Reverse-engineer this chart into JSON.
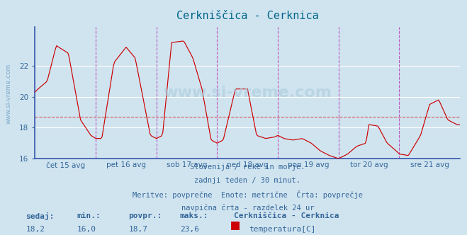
{
  "title": "Cerkniščica - Cerknica",
  "background_color": "#d0e4f0",
  "plot_bg_color": "#d0e4f0",
  "line_color": "#cc0000",
  "avg_line_color": "#dd4444",
  "vline_color": "#bb44bb",
  "grid_color": "#ffffff",
  "title_color": "#006688",
  "ymin": 16,
  "ymax": 24.5,
  "yticks": [
    16,
    18,
    20,
    22
  ],
  "avg_value": 18.7,
  "n_points": 337,
  "x_labels": [
    "čet 15 avg",
    "pet 16 avg",
    "sob 17 avg",
    "ned 18 avg",
    "pon 19 avg",
    "tor 20 avg",
    "sre 21 avg"
  ],
  "subtitle_lines": [
    "Slovenija / reke in morje.",
    "zadnji teden / 30 minut.",
    "Meritve: povprečne  Enote: metrične  Črta: povprečje",
    "navpična črta - razdelek 24 ur"
  ],
  "stat_labels": [
    "sedaj:",
    "min.:",
    "povpr.:",
    "maks.:"
  ],
  "stat_values": [
    "18,2",
    "16,0",
    "18,7",
    "23,6"
  ],
  "legend_title": "Cerkniščica - Cerknica",
  "legend_label": "temperatura[C]",
  "legend_color": "#cc0000",
  "watermark": "www.si-vreme.com",
  "axis_label_color": "#336699",
  "spine_color": "#3355aa",
  "ctrl_x": [
    0,
    0.05,
    0.2,
    0.35,
    0.55,
    0.75,
    0.92,
    1.0,
    1.1,
    1.3,
    1.5,
    1.65,
    1.75,
    1.9,
    2.0,
    2.1,
    2.25,
    2.45,
    2.6,
    2.75,
    2.9,
    3.0,
    3.1,
    3.3,
    3.5,
    3.65,
    3.8,
    3.95,
    4.0,
    4.1,
    4.25,
    4.4,
    4.55,
    4.7,
    4.85,
    5.0,
    5.15,
    5.3,
    5.45,
    5.5,
    5.65,
    5.8,
    5.95,
    6.0,
    6.15,
    6.35,
    6.5,
    6.65,
    6.8,
    6.95,
    7.0
  ],
  "ctrl_y": [
    20.3,
    20.5,
    21.0,
    23.3,
    22.8,
    18.5,
    17.5,
    17.3,
    17.3,
    22.2,
    23.2,
    22.5,
    20.5,
    17.5,
    17.3,
    17.5,
    23.5,
    23.6,
    22.5,
    20.5,
    17.2,
    17.0,
    17.2,
    20.5,
    20.5,
    17.5,
    17.3,
    17.4,
    17.5,
    17.3,
    17.2,
    17.3,
    17.0,
    16.5,
    16.2,
    16.0,
    16.3,
    16.8,
    17.0,
    18.2,
    18.1,
    17.0,
    16.5,
    16.3,
    16.2,
    17.5,
    19.5,
    19.8,
    18.5,
    18.2,
    18.2
  ]
}
